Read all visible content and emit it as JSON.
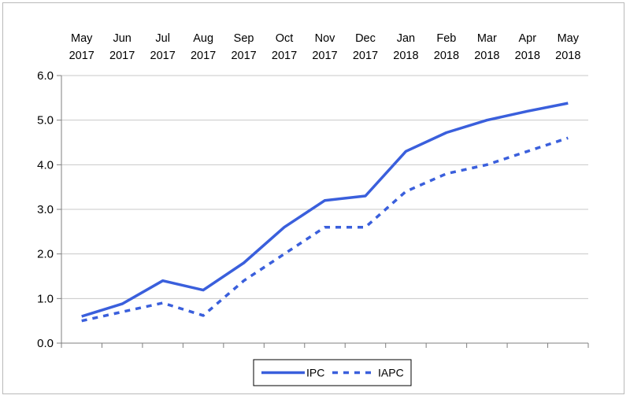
{
  "chart_data": {
    "type": "line",
    "title": "",
    "xlabel": "",
    "ylabel": "",
    "categories": [
      [
        "May",
        "2017"
      ],
      [
        "Jun",
        "2017"
      ],
      [
        "Jul",
        "2017"
      ],
      [
        "Aug",
        "2017"
      ],
      [
        "Sep",
        "2017"
      ],
      [
        "Oct",
        "2017"
      ],
      [
        "Nov",
        "2017"
      ],
      [
        "Dec",
        "2017"
      ],
      [
        "Jan",
        "2018"
      ],
      [
        "Feb",
        "2018"
      ],
      [
        "Mar",
        "2018"
      ],
      [
        "Apr",
        "2018"
      ],
      [
        "May",
        "2018"
      ]
    ],
    "ylim": [
      0,
      6
    ],
    "yticks": [
      "0.0",
      "1.0",
      "2.0",
      "3.0",
      "4.0",
      "5.0",
      "6.0"
    ],
    "x_axis_position": "top",
    "grid": true,
    "legend_position": "bottom-center",
    "series": [
      {
        "name": "IPC",
        "style": "solid",
        "color": "#3a5fdc",
        "values": [
          0.6,
          0.88,
          1.4,
          1.19,
          1.8,
          2.6,
          3.2,
          3.3,
          4.3,
          4.72,
          5.0,
          5.2,
          5.38
        ]
      },
      {
        "name": "IAPC",
        "style": "dashed",
        "color": "#3a5fdc",
        "values": [
          0.5,
          0.7,
          0.9,
          0.62,
          1.4,
          2.0,
          2.6,
          2.6,
          3.4,
          3.8,
          4.0,
          4.3,
          4.6
        ]
      }
    ]
  }
}
